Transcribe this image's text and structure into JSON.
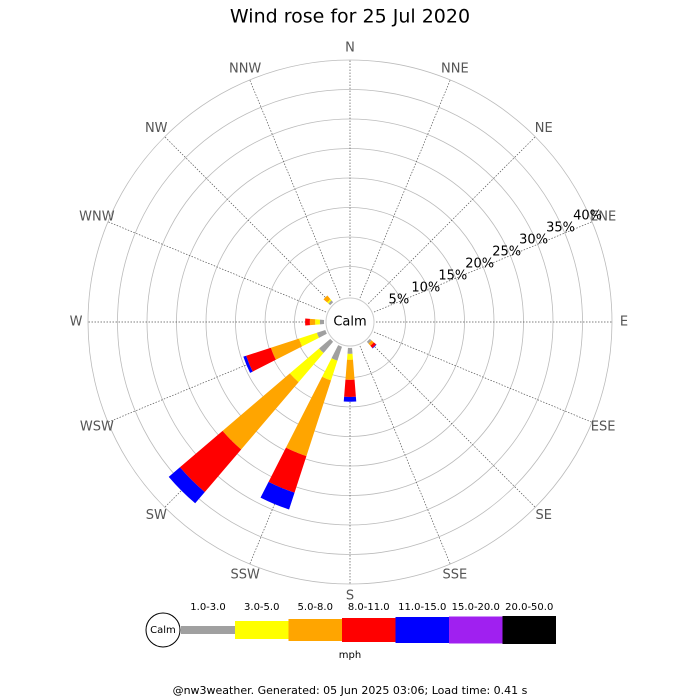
{
  "chart_data": {
    "type": "windrose",
    "title": "Wind rose for 25 Jul 2020",
    "center_label": "Calm",
    "directions": [
      "N",
      "NNE",
      "NE",
      "ENE",
      "E",
      "ESE",
      "SE",
      "SSE",
      "S",
      "SSW",
      "SW",
      "WSW",
      "W",
      "WNW",
      "NW",
      "NNW"
    ],
    "rlim": [
      0,
      40
    ],
    "rticks": [
      {
        "value": 5,
        "label": "5%"
      },
      {
        "value": 10,
        "label": "10%"
      },
      {
        "value": 15,
        "label": "15%"
      },
      {
        "value": 20,
        "label": "20%"
      },
      {
        "value": 25,
        "label": "25%"
      },
      {
        "value": 30,
        "label": "30%"
      },
      {
        "value": 35,
        "label": "35%"
      },
      {
        "value": 40,
        "label": "40%"
      }
    ],
    "grid": true,
    "legend_title": "mph",
    "series": [
      {
        "name": "1.0-3.0",
        "color": "#a0a0a0",
        "values": [
          0,
          0,
          0,
          0,
          0,
          0,
          0.4,
          0,
          1,
          2.5,
          2.5,
          1.5,
          0.7,
          0,
          0.4,
          0
        ]
      },
      {
        "name": "3.0-5.0",
        "color": "#ffff00",
        "values": [
          0,
          0,
          0,
          0,
          0,
          0,
          0,
          0,
          1,
          3.5,
          6.5,
          3.2,
          0.8,
          0,
          0.3,
          0
        ]
      },
      {
        "name": "5.0-8.0",
        "color": "#ffa500",
        "values": [
          0,
          0,
          0,
          0,
          0,
          0,
          0.5,
          0,
          3.4,
          13.5,
          15,
          5,
          0.9,
          0,
          0.8,
          0
        ]
      },
      {
        "name": "8.0-11.0",
        "color": "#ff0000",
        "values": [
          0,
          0,
          0,
          0,
          0,
          0,
          0.5,
          0,
          2.9,
          6.5,
          9.5,
          4.4,
          0.8,
          0,
          0,
          0
        ]
      },
      {
        "name": "11.0-15.0",
        "color": "#0000ff",
        "values": [
          0,
          0,
          0,
          0,
          0,
          0,
          0.1,
          0,
          0.8,
          3,
          2.5,
          0.5,
          0,
          0,
          0,
          0
        ]
      },
      {
        "name": "15.0-20.0",
        "color": "#a020f0",
        "values": [
          0,
          0,
          0,
          0,
          0,
          0,
          0,
          0,
          0,
          0,
          0,
          0,
          0,
          0,
          0,
          0
        ]
      },
      {
        "name": "20.0-50.0",
        "color": "#000000",
        "values": [
          0,
          0,
          0,
          0,
          0,
          0,
          0,
          0,
          0,
          0,
          0,
          0,
          0,
          0,
          0,
          0
        ]
      }
    ],
    "footer": "@nw3weather. Generated: 05 Jun 2025 03:06; Load time: 0.41 s"
  }
}
